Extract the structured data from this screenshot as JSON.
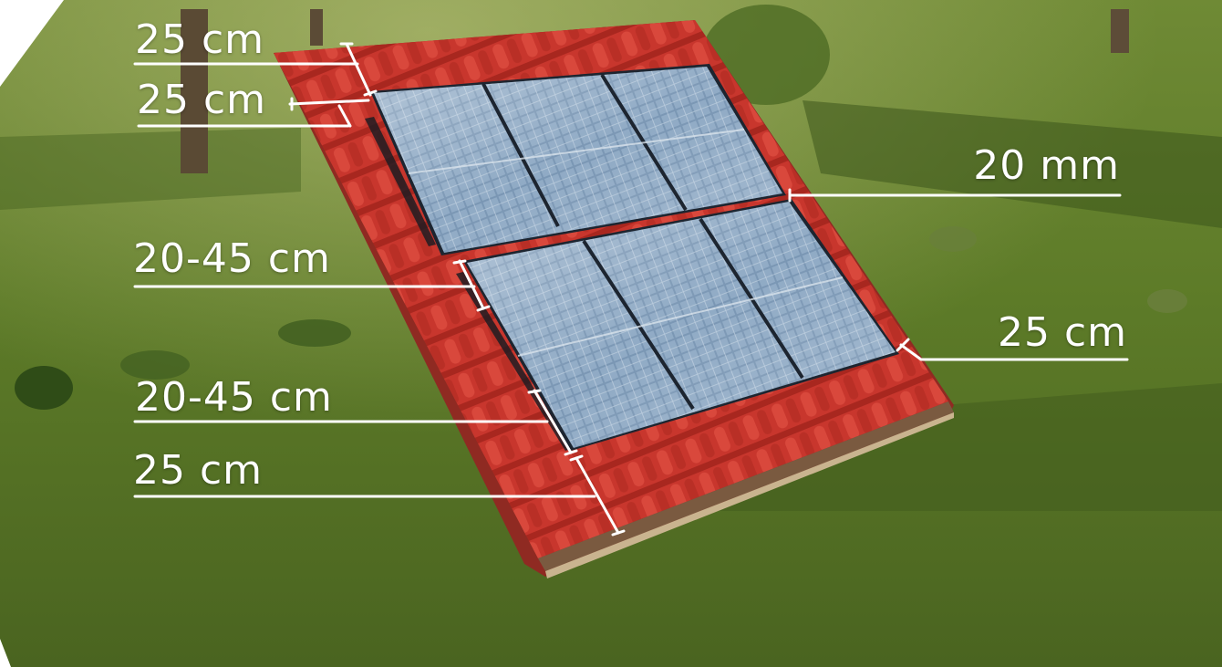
{
  "labels": {
    "top_margin_1": "25 cm",
    "top_margin_2": "25 cm",
    "row_gap_1": "20-45 cm",
    "row_gap_2": "20-45 cm",
    "bottom_margin": "25 cm",
    "panel_frame": "20 mm",
    "side_margin": "25 cm"
  },
  "colors": {
    "grass": "#5b7a2a",
    "roof_tile": "#c8352c",
    "panel_glass": "#6e8fae",
    "line": "#ffffff"
  }
}
